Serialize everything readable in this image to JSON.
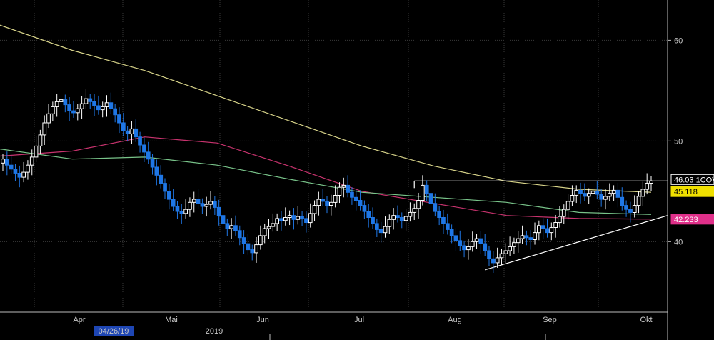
{
  "chart_data": {
    "type": "candlestick",
    "title": "",
    "xlabel": "",
    "ylabel": "",
    "ylim": [
      33.0,
      64.0
    ],
    "yticks": [
      40,
      50,
      60
    ],
    "grid": true,
    "x_month_labels": [
      "Apr",
      "Mai",
      "Jun",
      "Jul",
      "Aug",
      "Sep",
      "Okt"
    ],
    "x_year_label": "2019",
    "x_cursor_label": "04/26/19",
    "colors": {
      "up": "#ffffff",
      "down": "#1f77e6",
      "ma_long": "#d8d48a",
      "ma_mid": "#c8336e",
      "ma_short": "#79c48a",
      "trendline": "#ffffff",
      "label_bg_gold": "#f0e000",
      "label_bg_pink": "#e0308a",
      "grid": "#3a3a3a"
    },
    "candles_close": [
      48.2,
      47.6,
      47.2,
      46.8,
      46.4,
      46.9,
      47.6,
      48.4,
      49.5,
      50.6,
      51.8,
      52.7,
      53.4,
      53.9,
      54.1,
      53.6,
      53.0,
      52.8,
      53.2,
      53.7,
      54.2,
      53.9,
      53.5,
      53.1,
      53.4,
      53.8,
      53.2,
      52.6,
      51.8,
      51.0,
      50.7,
      51.2,
      50.4,
      49.6,
      48.9,
      48.2,
      47.4,
      46.6,
      45.8,
      45.0,
      44.2,
      43.5,
      43.0,
      42.8,
      43.2,
      43.9,
      44.2,
      43.8,
      43.5,
      43.7,
      44.0,
      43.4,
      42.6,
      41.8,
      41.3,
      41.6,
      41.1,
      40.4,
      39.8,
      39.2,
      38.9,
      39.7,
      40.6,
      41.3,
      41.5,
      41.8,
      42.3,
      42.1,
      42.4,
      42.6,
      42.2,
      42.5,
      42.3,
      41.9,
      42.8,
      43.6,
      44.2,
      44.0,
      43.6,
      43.9,
      44.6,
      45.4,
      45.6,
      44.9,
      44.4,
      44.1,
      43.6,
      43.0,
      42.4,
      41.8,
      41.2,
      40.9,
      41.5,
      42.2,
      42.6,
      42.4,
      42.1,
      42.5,
      42.9,
      43.3,
      44.1,
      45.6,
      44.8,
      43.8,
      43.0,
      42.4,
      41.8,
      41.2,
      40.6,
      40.1,
      39.6,
      39.2,
      39.5,
      40.0,
      40.3,
      39.8,
      39.1,
      38.3,
      37.9,
      38.4,
      38.8,
      39.1,
      39.5,
      39.9,
      40.3,
      40.6,
      40.4,
      40.2,
      40.9,
      41.6,
      41.3,
      40.9,
      41.4,
      41.9,
      42.5,
      43.2,
      44.0,
      44.6,
      45.1,
      44.8,
      44.5,
      44.8,
      45.0,
      44.7,
      44.2,
      44.5,
      44.8,
      45.1,
      44.4,
      43.6,
      43.2,
      42.9,
      43.6,
      44.5,
      45.2,
      45.8,
      46.03
    ],
    "ma_long": [
      61.5,
      59.0,
      57.0,
      54.5,
      52.0,
      49.5,
      47.5,
      46.0,
      45.2,
      44.9
    ],
    "ma_mid": [
      48.5,
      49.0,
      50.4,
      49.8,
      47.5,
      45.0,
      43.8,
      42.6,
      42.3,
      42.233
    ],
    "ma_short": [
      49.2,
      48.2,
      48.4,
      47.6,
      46.2,
      44.9,
      44.4,
      43.9,
      42.9,
      42.7
    ],
    "resistance_level": 46.03,
    "support_line": {
      "from": 37.2,
      "to": 42.6
    },
    "price_labels": [
      {
        "text": "46.03 1COV",
        "value": 46.03,
        "style": "outline"
      },
      {
        "text": "45.118",
        "value": 45.118,
        "style": "gold"
      },
      {
        "text": "42.233",
        "value": 42.233,
        "style": "pink"
      }
    ]
  }
}
